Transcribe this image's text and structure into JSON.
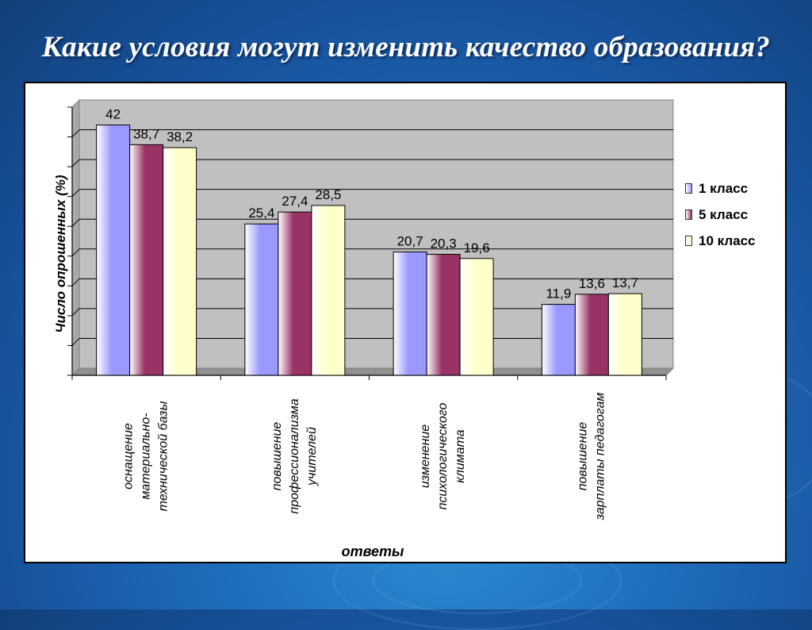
{
  "slide": {
    "title": "Какие условия могут изменить качество образования?"
  },
  "chart_data": {
    "type": "bar",
    "title": "",
    "ylabel": "Число опрошенных (%)",
    "xlabel": "ответы",
    "ylim": [
      0,
      45
    ],
    "grid": true,
    "legend_position": "right",
    "categories": [
      [
        "оснащение",
        "материально-",
        "технической базы"
      ],
      [
        "повышение",
        "профессионализма",
        "учителей"
      ],
      [
        "изменение",
        "психологического",
        "климата"
      ],
      [
        "повышение",
        "зарплаты педагогам"
      ]
    ],
    "series": [
      {
        "name": "1 класс",
        "values": [
          42,
          25.4,
          20.7,
          11.9
        ],
        "labels": [
          "42",
          "25,4",
          "20,7",
          "11,9"
        ],
        "color": "#9999ff"
      },
      {
        "name": "5 класс",
        "values": [
          38.7,
          27.4,
          20.3,
          13.6
        ],
        "labels": [
          "38,7",
          "27,4",
          "20,3",
          "13,6"
        ],
        "color": "#993366"
      },
      {
        "name": "10 класс",
        "values": [
          38.2,
          28.5,
          19.6,
          13.7
        ],
        "labels": [
          "38,2",
          "28,5",
          "19,6",
          "13,7"
        ],
        "color": "#ffffcc"
      }
    ]
  }
}
